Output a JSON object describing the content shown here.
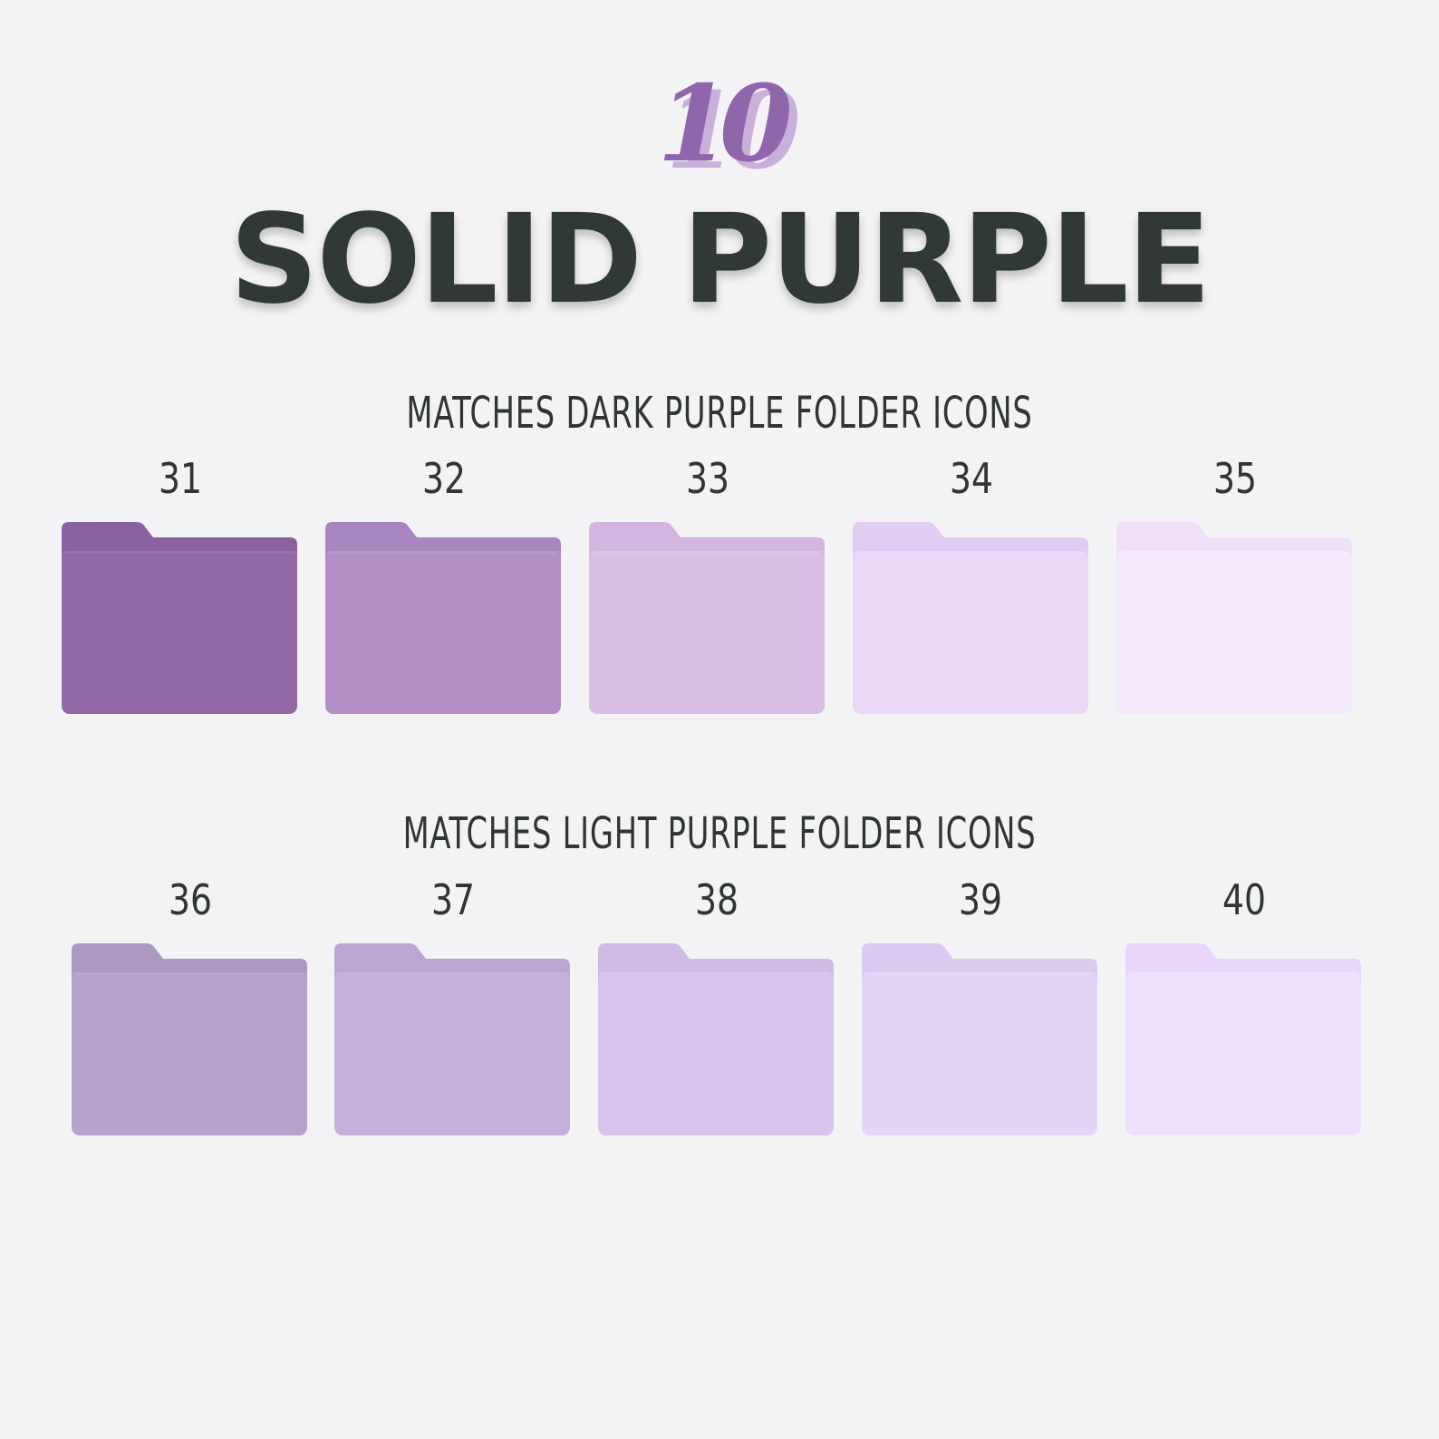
{
  "badge": {
    "text": "10",
    "color_front": "#8f66ab",
    "color_back": "#c7b1d8"
  },
  "title": "SOLID PURPLE",
  "sections": [
    {
      "heading": "MATCHES DARK PURPLE FOLDER ICONS",
      "folders": [
        {
          "number": "31",
          "color": "#9169a5",
          "tab_color": "#8a62a0"
        },
        {
          "number": "32",
          "color": "#b38ec7",
          "tab_color": "#a886bf"
        },
        {
          "number": "33",
          "color": "#d9bfe6",
          "tab_color": "#d2b6e0"
        },
        {
          "number": "34",
          "color": "#e9d7f6",
          "tab_color": "#e3ccf1"
        },
        {
          "number": "35",
          "color": "#f4e9fc",
          "tab_color": "#efe0f8"
        }
      ]
    },
    {
      "heading": "MATCHES LIGHT PURPLE FOLDER ICONS",
      "folders": [
        {
          "number": "36",
          "color": "#b6a1cb",
          "tab_color": "#ad98c2"
        },
        {
          "number": "37",
          "color": "#c4afdb",
          "tab_color": "#bca6d4"
        },
        {
          "number": "38",
          "color": "#d7c3ec",
          "tab_color": "#cfbbe4"
        },
        {
          "number": "39",
          "color": "#e4d5f7",
          "tab_color": "#dccbf0"
        },
        {
          "number": "40",
          "color": "#eedffd",
          "tab_color": "#e7d6f9"
        }
      ]
    }
  ]
}
